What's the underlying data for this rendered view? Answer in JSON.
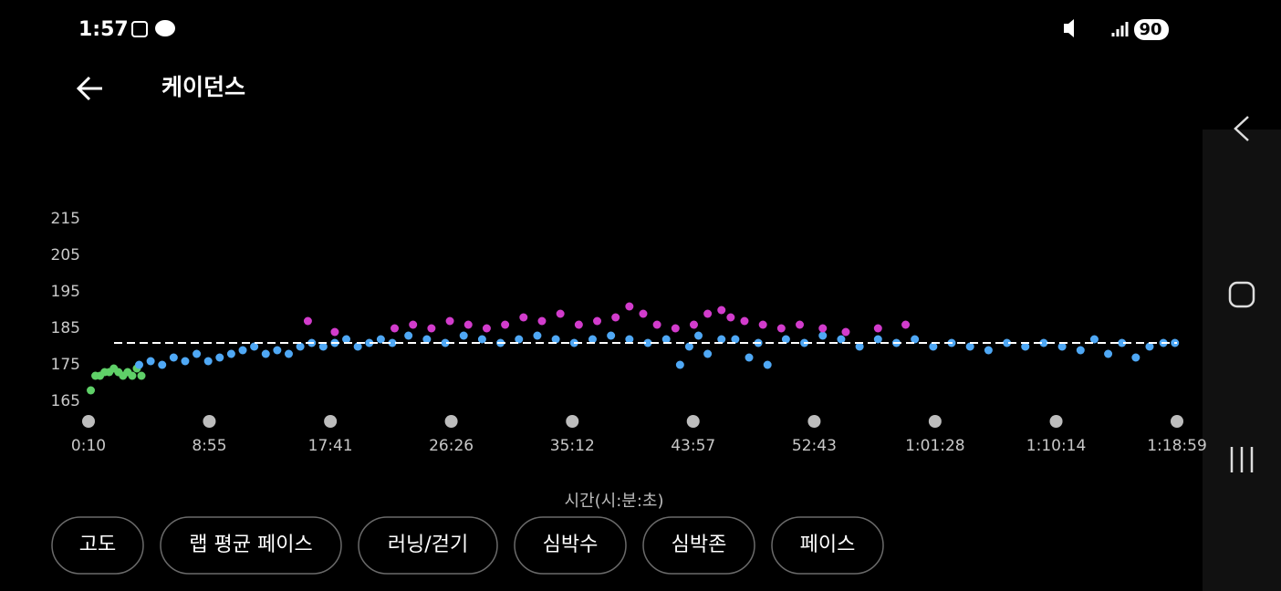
{
  "status_bar": {
    "time": "1:57",
    "battery": "90"
  },
  "header": {
    "title": "케이던스"
  },
  "chart_data": {
    "type": "scatter",
    "x_label": "시간(시:분:초)",
    "ylim": [
      165,
      215
    ],
    "yticks": [
      165,
      175,
      185,
      195,
      205,
      215
    ],
    "xlim": [
      10,
      4739
    ],
    "xticks": [
      {
        "value": 10,
        "label": "0:10"
      },
      {
        "value": 535,
        "label": "8:55"
      },
      {
        "value": 1061,
        "label": "17:41"
      },
      {
        "value": 1586,
        "label": "26:26"
      },
      {
        "value": 2112,
        "label": "35:12"
      },
      {
        "value": 2637,
        "label": "43:57"
      },
      {
        "value": 3163,
        "label": "52:43"
      },
      {
        "value": 3688,
        "label": "1:01:28"
      },
      {
        "value": 4214,
        "label": "1:10:14"
      },
      {
        "value": 4739,
        "label": "1:18:59"
      }
    ],
    "average": 181,
    "series": [
      {
        "color": "#5fd068",
        "x": [
          20,
          40,
          60,
          80,
          100,
          120,
          140,
          160,
          180,
          200,
          220,
          240
        ],
        "values": [
          168,
          172,
          172,
          173,
          173,
          174,
          173,
          172,
          173,
          172,
          174,
          172
        ]
      },
      {
        "color": "#4fa8f5",
        "x": [
          230,
          280,
          330,
          380,
          430,
          480,
          530,
          580,
          630,
          680,
          730,
          780,
          830,
          880,
          930,
          980,
          1030,
          1080,
          1130,
          1180,
          1230,
          1280,
          1330,
          1400,
          1480,
          1560,
          1640,
          1720,
          1800,
          1880,
          1960,
          2040,
          2120,
          2200,
          2280,
          2360,
          2440,
          2520,
          2580,
          2620,
          2660,
          2700,
          2760,
          2820,
          2880,
          2920,
          2960,
          3040,
          3120,
          3200,
          3280,
          3360,
          3440,
          3520,
          3600,
          3680,
          3760,
          3840,
          3920,
          4000,
          4080,
          4160,
          4240,
          4320,
          4380,
          4440,
          4500,
          4560,
          4620,
          4680,
          4730
        ],
        "values": [
          175,
          176,
          175,
          177,
          176,
          178,
          176,
          177,
          178,
          179,
          180,
          178,
          179,
          178,
          180,
          181,
          180,
          181,
          182,
          180,
          181,
          182,
          181,
          183,
          182,
          181,
          183,
          182,
          181,
          182,
          183,
          182,
          181,
          182,
          183,
          182,
          181,
          182,
          175,
          180,
          183,
          178,
          182,
          182,
          177,
          181,
          175,
          182,
          181,
          183,
          182,
          180,
          182,
          181,
          182,
          180,
          181,
          180,
          179,
          181,
          180,
          181,
          180,
          179,
          182,
          178,
          181,
          177,
          180,
          181,
          181
        ]
      },
      {
        "color": "#d23ccc",
        "x": [
          963,
          1080,
          1340,
          1420,
          1500,
          1580,
          1660,
          1740,
          1820,
          1900,
          1980,
          2060,
          2140,
          2220,
          2300,
          2360,
          2420,
          2480,
          2560,
          2640,
          2700,
          2760,
          2800,
          2860,
          2940,
          3020,
          3100,
          3200,
          3300,
          3440,
          3560
        ],
        "values": [
          187,
          184,
          185,
          186,
          185,
          187,
          186,
          185,
          186,
          188,
          187,
          189,
          186,
          187,
          188,
          191,
          189,
          186,
          185,
          186,
          189,
          190,
          188,
          187,
          186,
          185,
          186,
          185,
          184,
          185,
          186
        ]
      }
    ]
  },
  "buttons": [
    "고도",
    "랩 평균 페이스",
    "러닝/걷기",
    "심박수",
    "심박존",
    "페이스"
  ]
}
